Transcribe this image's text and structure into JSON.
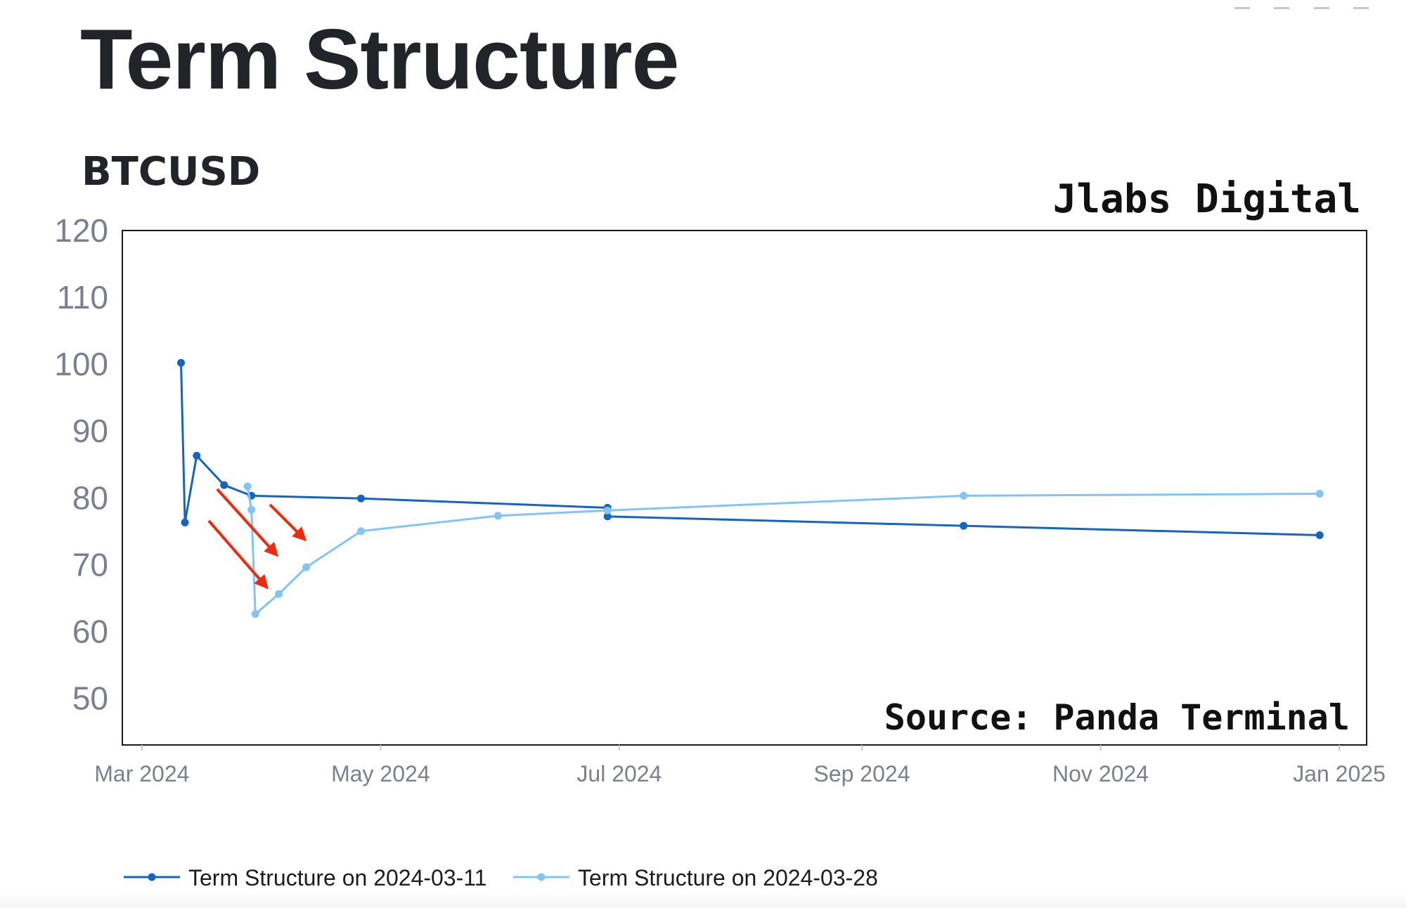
{
  "page": {
    "title": "Term Structure"
  },
  "chart_data": {
    "type": "line",
    "title": "BTCUSD",
    "xlabel": "",
    "ylabel": "",
    "x_axis_type": "date",
    "xlim": [
      "2024-02-25",
      "2025-01-08"
    ],
    "ylim": [
      43,
      120
    ],
    "y_ticks": [
      50,
      60,
      70,
      80,
      90,
      100,
      110,
      120
    ],
    "x_ticks": [
      {
        "date": "2024-03-01",
        "label": "Mar 2024"
      },
      {
        "date": "2024-05-01",
        "label": "May 2024"
      },
      {
        "date": "2024-07-01",
        "label": "Jul 2024"
      },
      {
        "date": "2024-09-01",
        "label": "Sep 2024"
      },
      {
        "date": "2024-11-01",
        "label": "Nov 2024"
      },
      {
        "date": "2025-01-01",
        "label": "Jan 2025"
      }
    ],
    "grid": false,
    "legend_position": "bottom",
    "series": [
      {
        "name": "Term Structure on 2024-03-11",
        "color": "#1565c0",
        "points": [
          {
            "x": "2024-03-11",
            "y": 100.2
          },
          {
            "x": "2024-03-12",
            "y": 76.3
          },
          {
            "x": "2024-03-15",
            "y": 86.3
          },
          {
            "x": "2024-03-22",
            "y": 81.9
          },
          {
            "x": "2024-03-29",
            "y": 80.3
          },
          {
            "x": "2024-04-26",
            "y": 79.9
          },
          {
            "x": "2024-06-28",
            "y": 78.5
          },
          {
            "x": "2024-06-28",
            "y": 77.2
          },
          {
            "x": "2024-09-27",
            "y": 75.8
          },
          {
            "x": "2024-12-27",
            "y": 74.4
          }
        ]
      },
      {
        "name": "Term Structure on 2024-03-28",
        "color": "#82c4f5",
        "points": [
          {
            "x": "2024-03-28",
            "y": 81.7
          },
          {
            "x": "2024-03-29",
            "y": 78.2
          },
          {
            "x": "2024-03-30",
            "y": 62.6
          },
          {
            "x": "2024-04-05",
            "y": 65.6
          },
          {
            "x": "2024-04-12",
            "y": 69.6
          },
          {
            "x": "2024-04-26",
            "y": 75.0
          },
          {
            "x": "2024-05-31",
            "y": 77.3
          },
          {
            "x": "2024-06-28",
            "y": 78.1
          },
          {
            "x": "2024-09-27",
            "y": 80.3
          },
          {
            "x": "2024-12-27",
            "y": 80.6
          }
        ]
      }
    ],
    "annotations": {
      "watermark_top": "Jlabs Digital",
      "watermark_bottom": "Source: Panda Terminal",
      "arrow_color": "#f02a0e",
      "arrow_count": 3
    }
  }
}
